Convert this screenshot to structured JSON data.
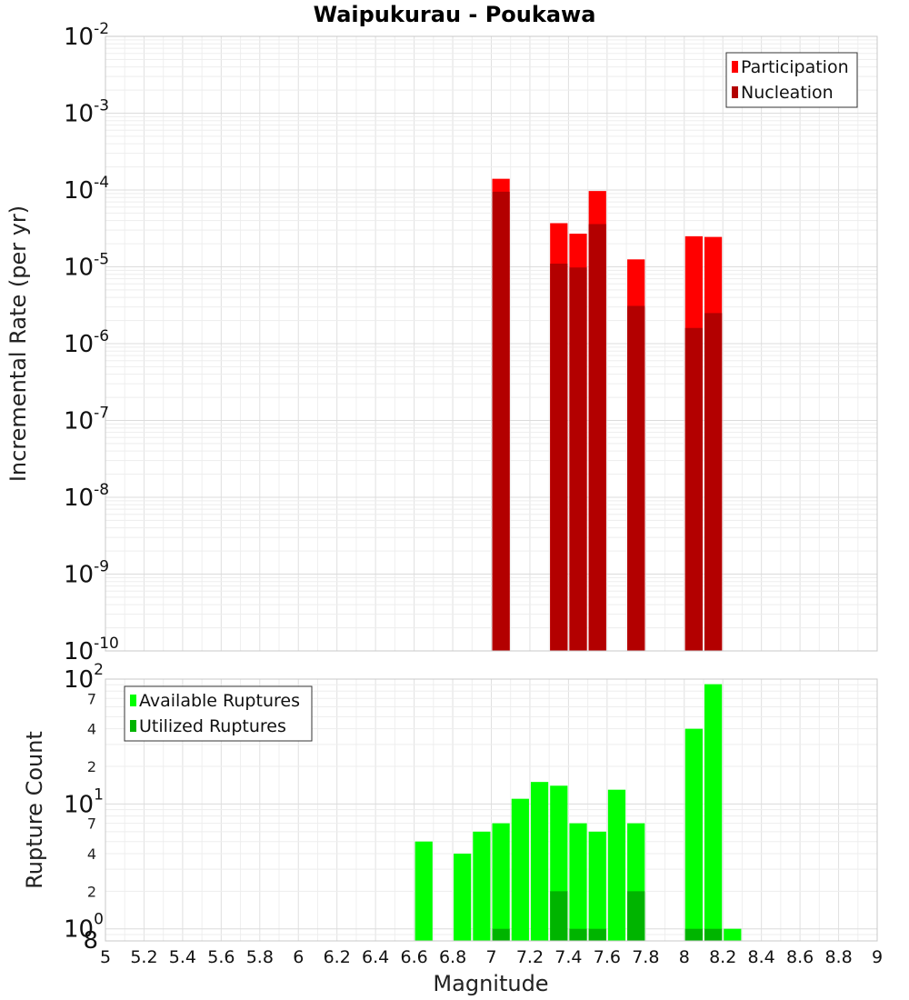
{
  "chart_data": [
    {
      "type": "bar",
      "title": "Waipukurau - Poukawa",
      "ylabel": "Incremental Rate (per yr)",
      "xlabel": "",
      "yscale": "log",
      "ylim": [
        1e-10,
        0.01
      ],
      "xlim": [
        5,
        9
      ],
      "bar_width": 0.1,
      "y_ticks": [
        "10",
        "10",
        "10",
        "10",
        "10",
        "10",
        "10",
        "10",
        "10"
      ],
      "y_tick_exps": [
        "-10",
        "-9",
        "-8",
        "-7",
        "-6",
        "-5",
        "-4",
        "-3",
        "-2"
      ],
      "legend": {
        "placement": "top-right",
        "entries": [
          "Participation",
          "Nucleation"
        ]
      },
      "grid": true,
      "series": [
        {
          "name": "Participation",
          "color": "#ff0000",
          "x": [
            7.05,
            7.35,
            7.45,
            7.55,
            7.75,
            8.05,
            8.15
          ],
          "values": [
            0.00014,
            3.7e-05,
            2.7e-05,
            9.7e-05,
            1.25e-05,
            2.5e-05,
            2.45e-05
          ]
        },
        {
          "name": "Nucleation",
          "color": "#b30000",
          "x": [
            7.05,
            7.35,
            7.45,
            7.55,
            7.75,
            8.05,
            8.15
          ],
          "values": [
            9.5e-05,
            1.1e-05,
            9.8e-06,
            3.6e-05,
            3.1e-06,
            1.6e-06,
            2.5e-06
          ]
        }
      ]
    },
    {
      "type": "bar",
      "title": "",
      "ylabel": "Rupture Count",
      "xlabel": "Magnitude",
      "yscale": "log",
      "ylim": [
        0.8,
        100
      ],
      "xlim": [
        5,
        9
      ],
      "bar_width": 0.1,
      "x_ticks": [
        "5",
        "5.2",
        "5.4",
        "5.6",
        "5.8",
        "6",
        "6.2",
        "6.4",
        "6.6",
        "6.8",
        "7",
        "7.2",
        "7.4",
        "7.6",
        "7.8",
        "8",
        "8.2",
        "8.4",
        "8.6",
        "8.8",
        "9"
      ],
      "y_major_ticks": [
        {
          "label": "10",
          "exp": "0"
        },
        {
          "label": "10",
          "exp": "1"
        },
        {
          "label": "10",
          "exp": "2"
        }
      ],
      "y_minor_ticks": [
        "8",
        "2",
        "4",
        "7",
        "2",
        "4",
        "7"
      ],
      "legend": {
        "placement": "top-left",
        "entries": [
          "Available Ruptures",
          "Utilized Ruptures"
        ]
      },
      "grid": true,
      "series": [
        {
          "name": "Available Ruptures",
          "color": "#00ff00",
          "x": [
            6.65,
            6.85,
            6.95,
            7.05,
            7.15,
            7.25,
            7.35,
            7.45,
            7.55,
            7.65,
            7.75,
            8.05,
            8.15,
            8.25
          ],
          "values": [
            5,
            4,
            6,
            7,
            11,
            15,
            14,
            7,
            6,
            13,
            7,
            40,
            91,
            1
          ]
        },
        {
          "name": "Utilized Ruptures",
          "color": "#00b400",
          "x": [
            7.05,
            7.35,
            7.45,
            7.55,
            7.75,
            8.05,
            8.15
          ],
          "values": [
            1,
            2,
            1,
            1,
            2,
            1,
            1
          ]
        }
      ]
    }
  ]
}
